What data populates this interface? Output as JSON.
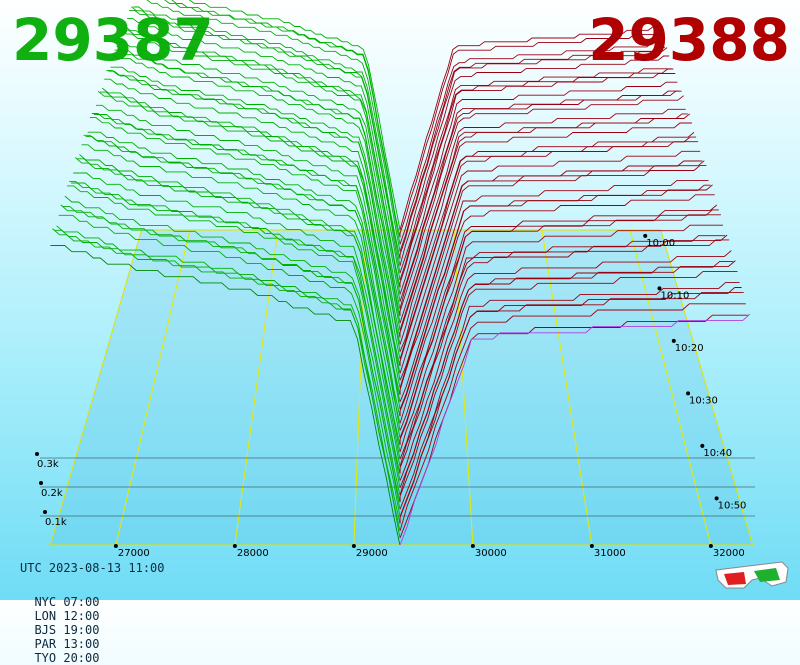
{
  "header": {
    "bid_price": "29387",
    "ask_price": "29388",
    "bid_color": "#10b010",
    "ask_color": "#b00000"
  },
  "footer": {
    "utc": "UTC 2023-08-13 11:00",
    "zones": [
      {
        "label": "NYC 07:00"
      },
      {
        "label": "LON 12:00"
      },
      {
        "label": "BJS 19:00"
      },
      {
        "label": "PAR 13:00"
      },
      {
        "label": "TYO 20:00"
      }
    ]
  },
  "icons": {
    "stereo": "3d-glasses-icon"
  },
  "chart_data": {
    "type": "area",
    "description_of_axes": "3D order-book depth chart",
    "x_ticks": [
      "27000",
      "28000",
      "29000",
      "30000",
      "31000",
      "32000"
    ],
    "x_tick_values": [
      27000,
      28000,
      29000,
      30000,
      31000,
      32000
    ],
    "depth_ticks": [
      "0.1k",
      "0.2k",
      "0.3k"
    ],
    "depth_tick_values": [
      100,
      200,
      300
    ],
    "time_ticks": [
      "10:00",
      "10:10",
      "10:20",
      "10:30",
      "10:40",
      "10:50"
    ],
    "mid_price": 29387.5,
    "bid_color": "#00b000",
    "ask_color": "#a00010",
    "series": [
      {
        "name": "bids",
        "x": [
          26400,
          27000,
          28000,
          29000,
          29387
        ],
        "y": [
          520,
          480,
          440,
          380,
          0
        ]
      },
      {
        "name": "asks",
        "x": [
          29388,
          30000,
          31000,
          32000,
          32400
        ],
        "y": [
          0,
          380,
          395,
          410,
          420
        ]
      }
    ]
  }
}
